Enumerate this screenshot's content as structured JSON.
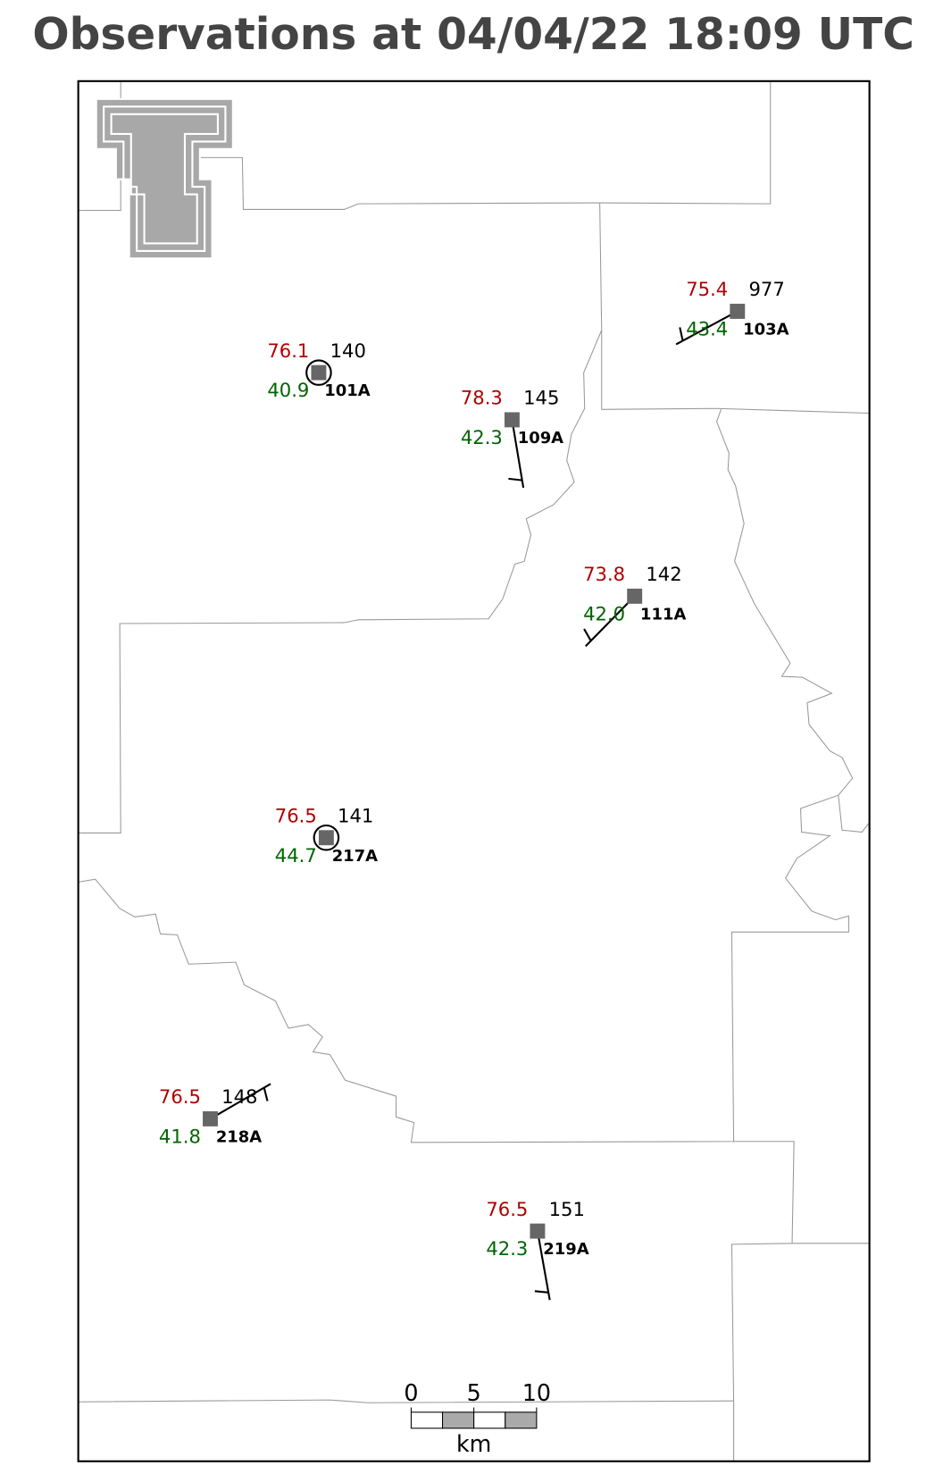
{
  "title": "Observations at 04/04/22 18:09 UTC",
  "stations": [
    {
      "id": "101A",
      "temperature": "76.1",
      "dewpoint": "40.9",
      "pressure": "140"
    },
    {
      "id": "109A",
      "temperature": "78.3",
      "dewpoint": "42.3",
      "pressure": "145"
    },
    {
      "id": "103A",
      "temperature": "75.4",
      "dewpoint": "43.4",
      "pressure": "977"
    },
    {
      "id": "111A",
      "temperature": "73.8",
      "dewpoint": "42.0",
      "pressure": "142"
    },
    {
      "id": "217A",
      "temperature": "76.5",
      "dewpoint": "44.7",
      "pressure": "141"
    },
    {
      "id": "218A",
      "temperature": "76.5",
      "dewpoint": "41.8",
      "pressure": "148"
    },
    {
      "id": "219A",
      "temperature": "76.5",
      "dewpoint": "42.3",
      "pressure": "151"
    }
  ],
  "scale_bar": {
    "labels": [
      "0",
      "5",
      "10"
    ],
    "unit": "km"
  }
}
